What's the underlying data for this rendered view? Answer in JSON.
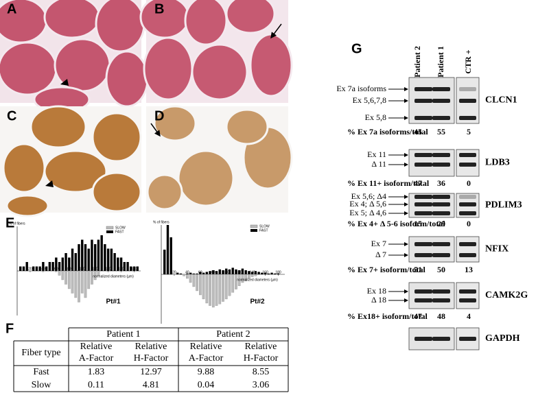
{
  "panel_labels": [
    "A",
    "B",
    "C",
    "D",
    "E",
    "F",
    "G"
  ],
  "histograms": [
    {
      "title": "Pt#1",
      "y_label": "% of fibers",
      "x_label": "normalized diameters (µm)",
      "legend": [
        "SLOW",
        "FAST"
      ],
      "xlim": [
        0,
        190
      ],
      "ylim": [
        0,
        10
      ],
      "xticks": [
        20,
        40,
        60,
        80,
        100,
        120,
        140,
        160,
        180
      ],
      "x": [
        5,
        10,
        15,
        20,
        25,
        30,
        35,
        40,
        45,
        50,
        55,
        60,
        65,
        70,
        75,
        80,
        85,
        90,
        95,
        100,
        105,
        110,
        115,
        120,
        125,
        130,
        135,
        140,
        145,
        150,
        155,
        160,
        165,
        170,
        175,
        180,
        185
      ],
      "fast": [
        1,
        1,
        2,
        0,
        1,
        1,
        1,
        2,
        1,
        2,
        2,
        3,
        2,
        3,
        4,
        3,
        5,
        4,
        6,
        7,
        6,
        5,
        7,
        6,
        7,
        8,
        6,
        5,
        5,
        4,
        3,
        3,
        2,
        2,
        1,
        1,
        1
      ],
      "slow": [
        0,
        0,
        0,
        0,
        0,
        0,
        0,
        0,
        0,
        0,
        0,
        0,
        1,
        2,
        3,
        4,
        5,
        6,
        7,
        5,
        6,
        4,
        3,
        2,
        1,
        0,
        0,
        0,
        0,
        0,
        0,
        0,
        0,
        0,
        0,
        0,
        0
      ]
    },
    {
      "title": "Pt#2",
      "y_label": "% of fibers",
      "x_label": "normalized diameters (µm)",
      "legend": [
        "SLOW",
        "FAST"
      ],
      "xlim": [
        0,
        190
      ],
      "ylim": [
        0,
        60
      ],
      "xticks": [
        20,
        40,
        60,
        80,
        100,
        120,
        140,
        160,
        180
      ],
      "x": [
        5,
        10,
        15,
        20,
        25,
        30,
        35,
        40,
        45,
        50,
        55,
        60,
        65,
        70,
        75,
        80,
        85,
        90,
        95,
        100,
        105,
        110,
        115,
        120,
        125,
        130,
        135,
        140,
        145,
        150,
        155,
        160,
        165,
        170,
        175,
        180,
        185
      ],
      "fast": [
        30,
        60,
        45,
        0,
        2,
        1,
        0,
        1,
        2,
        1,
        1,
        3,
        2,
        3,
        4,
        5,
        4,
        6,
        5,
        7,
        6,
        8,
        6,
        5,
        7,
        5,
        4,
        3,
        4,
        3,
        2,
        2,
        1,
        2,
        1,
        1,
        0
      ],
      "slow": [
        0,
        0,
        0,
        0,
        0,
        0,
        2,
        5,
        10,
        15,
        20,
        25,
        30,
        35,
        38,
        40,
        38,
        36,
        33,
        30,
        26,
        22,
        18,
        14,
        10,
        8,
        5,
        3,
        2,
        0,
        0,
        0,
        0,
        0,
        0,
        0,
        0
      ]
    }
  ],
  "table": {
    "header": [
      "Fiber type",
      "Patient 1",
      "Patient 2"
    ],
    "subheader": [
      [
        "Relative",
        "A-Factor"
      ],
      [
        "Relative",
        "H-Factor"
      ],
      [
        "Relative",
        "A-Factor"
      ],
      [
        "Relative",
        "H-Factor"
      ]
    ],
    "rows": [
      [
        "Fast",
        "1.83",
        "12.97",
        "9.88",
        "8.55"
      ],
      [
        "Slow",
        "0.11",
        "4.81",
        "0.04",
        "3.06"
      ]
    ]
  },
  "gel": {
    "columns": [
      "Patient 2",
      "Patient 1",
      "CTR +"
    ],
    "blots": [
      {
        "gene": "CLCN1",
        "bands": [
          "Ex 7a isoforms",
          "Ex 5,6,7,8",
          "Ex 5,8"
        ],
        "ratio_label": "% Ex 7a isoforms/total",
        "ratios": [
          45,
          55,
          5
        ]
      },
      {
        "gene": "LDB3",
        "bands": [
          "Ex 11",
          "Δ 11"
        ],
        "ratio_label": "% Ex 11+ isoform/total",
        "ratios": [
          47,
          36,
          0
        ]
      },
      {
        "gene": "PDLIM3",
        "bands": [
          "Ex 5,6;  Δ4",
          "Ex 4; Δ 5,6",
          "Ex 5; Δ 4,6"
        ],
        "ratio_label": "% Ex 4+ Δ 5-6 isoform/total",
        "ratios": [
          15,
          29,
          0
        ]
      },
      {
        "gene": "NFIX",
        "bands": [
          "Ex 7",
          "Δ 7"
        ],
        "ratio_label": "% Ex 7+ isoform/total",
        "ratios": [
          51,
          50,
          13
        ]
      },
      {
        "gene": "CAMK2G",
        "bands": [
          "Ex 18",
          "Δ 18"
        ],
        "ratio_label": "% Ex18+ isoform/total",
        "ratios": [
          47,
          48,
          4
        ]
      },
      {
        "gene": "GAPDH",
        "bands": [],
        "ratio_label": null,
        "ratios": []
      }
    ]
  }
}
